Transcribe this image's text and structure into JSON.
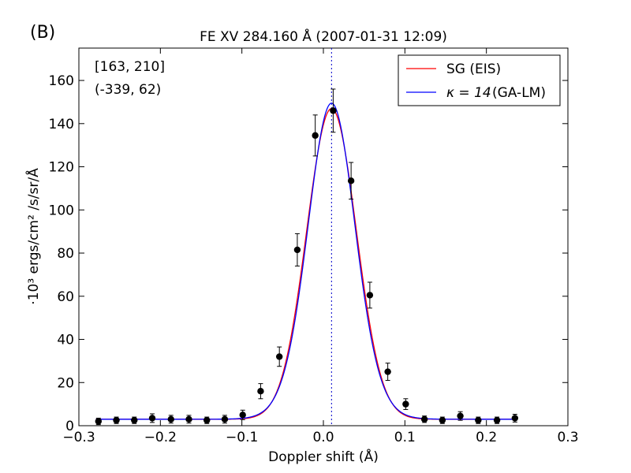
{
  "panel_label": "(B)",
  "chart_data": {
    "type": "line",
    "title": "FE XV 284.160 Å  (2007-01-31 12:09)",
    "xlabel": "Doppler shift (Å)",
    "ylabel": "·10³  ergs/cm² /s/sr/Å",
    "xlim": [
      -0.3,
      0.3
    ],
    "ylim": [
      0,
      175
    ],
    "x_ticks": [
      -0.3,
      -0.2,
      -0.1,
      0.0,
      0.1,
      0.2,
      0.3
    ],
    "x_tick_labels": [
      "−0.3",
      "−0.2",
      "−0.1",
      "0.0",
      "0.1",
      "0.2",
      "0.3"
    ],
    "y_ticks": [
      0,
      20,
      40,
      60,
      80,
      100,
      120,
      140,
      160
    ],
    "y_tick_labels": [
      "0",
      "20",
      "40",
      "60",
      "80",
      "100",
      "120",
      "140",
      "160"
    ],
    "grid": false,
    "legend_position": "top-right",
    "annotations": [
      {
        "text": "[163, 210]"
      },
      {
        "text": "(-339, 62)"
      }
    ],
    "vertical_line": {
      "x": 0.01,
      "style": "dotted",
      "color": "#0000cc"
    },
    "points": {
      "x": [
        -0.276,
        -0.254,
        -0.232,
        -0.21,
        -0.187,
        -0.165,
        -0.143,
        -0.121,
        -0.099,
        -0.077,
        -0.054,
        -0.032,
        -0.01,
        0.012,
        0.034,
        0.057,
        0.079,
        0.101,
        0.124,
        0.146,
        0.168,
        0.19,
        0.213,
        0.235
      ],
      "y": [
        2,
        2.5,
        2.5,
        3.5,
        3.0,
        3.0,
        2.5,
        3.0,
        5.0,
        16.0,
        32.0,
        81.5,
        134.5,
        146.0,
        113.5,
        60.5,
        25.0,
        10.0,
        3.0,
        2.5,
        4.5,
        2.5,
        2.5,
        3.5
      ],
      "err": [
        1.5,
        1.5,
        1.5,
        2.0,
        1.8,
        1.8,
        1.5,
        1.8,
        2.2,
        3.5,
        4.5,
        7.5,
        9.5,
        10.0,
        8.5,
        6.0,
        4.0,
        2.5,
        1.5,
        1.5,
        2.0,
        1.5,
        1.5,
        1.8
      ],
      "color": "#000000"
    },
    "series": [
      {
        "name": "SG (EIS)",
        "legend_label": "SG (EIS)",
        "color": "#ff0000",
        "model": "gaussian",
        "center": 0.01,
        "peak": 144.0,
        "sigma": 0.0305,
        "background": 3.0
      },
      {
        "name": "κ=14 (GA-LM)",
        "legend_label": "(GA-LM)",
        "legend_math": "κ = 14",
        "color": "#0000ff",
        "model": "kappa",
        "center": 0.01,
        "peak": 146.5,
        "sigma": 0.0305,
        "kappa": 14,
        "background": 3.0
      }
    ]
  }
}
